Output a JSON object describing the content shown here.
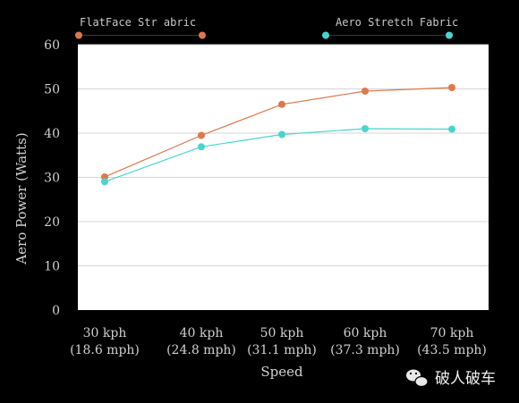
{
  "chart_data": {
    "type": "line",
    "xlabel": "Speed",
    "ylabel": "Aero Power (Watts)",
    "ylim": [
      0,
      60
    ],
    "yticks": [
      "0",
      "10",
      "20",
      "30",
      "40",
      "50",
      "60"
    ],
    "categories": [
      {
        "line1": "30 kph",
        "line2": "(18.6 mph)"
      },
      {
        "line1": "40 kph",
        "line2": "(24.8 mph)"
      },
      {
        "line1": "50 kph",
        "line2": "(31.1 mph)"
      },
      {
        "line1": "60 kph",
        "line2": "(37.3 mph)"
      },
      {
        "line1": "70 kph",
        "line2": "(43.5 mph)"
      }
    ],
    "grid": true,
    "legend_position": "top",
    "series": [
      {
        "name": "FlatFace Str     abric",
        "color": "#e0774a",
        "values": [
          30.1,
          39.5,
          46.5,
          49.5,
          50.3
        ]
      },
      {
        "name": "Aero Stretch Fabric",
        "color": "#47d6cd",
        "values": [
          29.0,
          36.9,
          39.7,
          41.0,
          40.9
        ]
      }
    ]
  },
  "watermark": {
    "text": "破人破车"
  }
}
